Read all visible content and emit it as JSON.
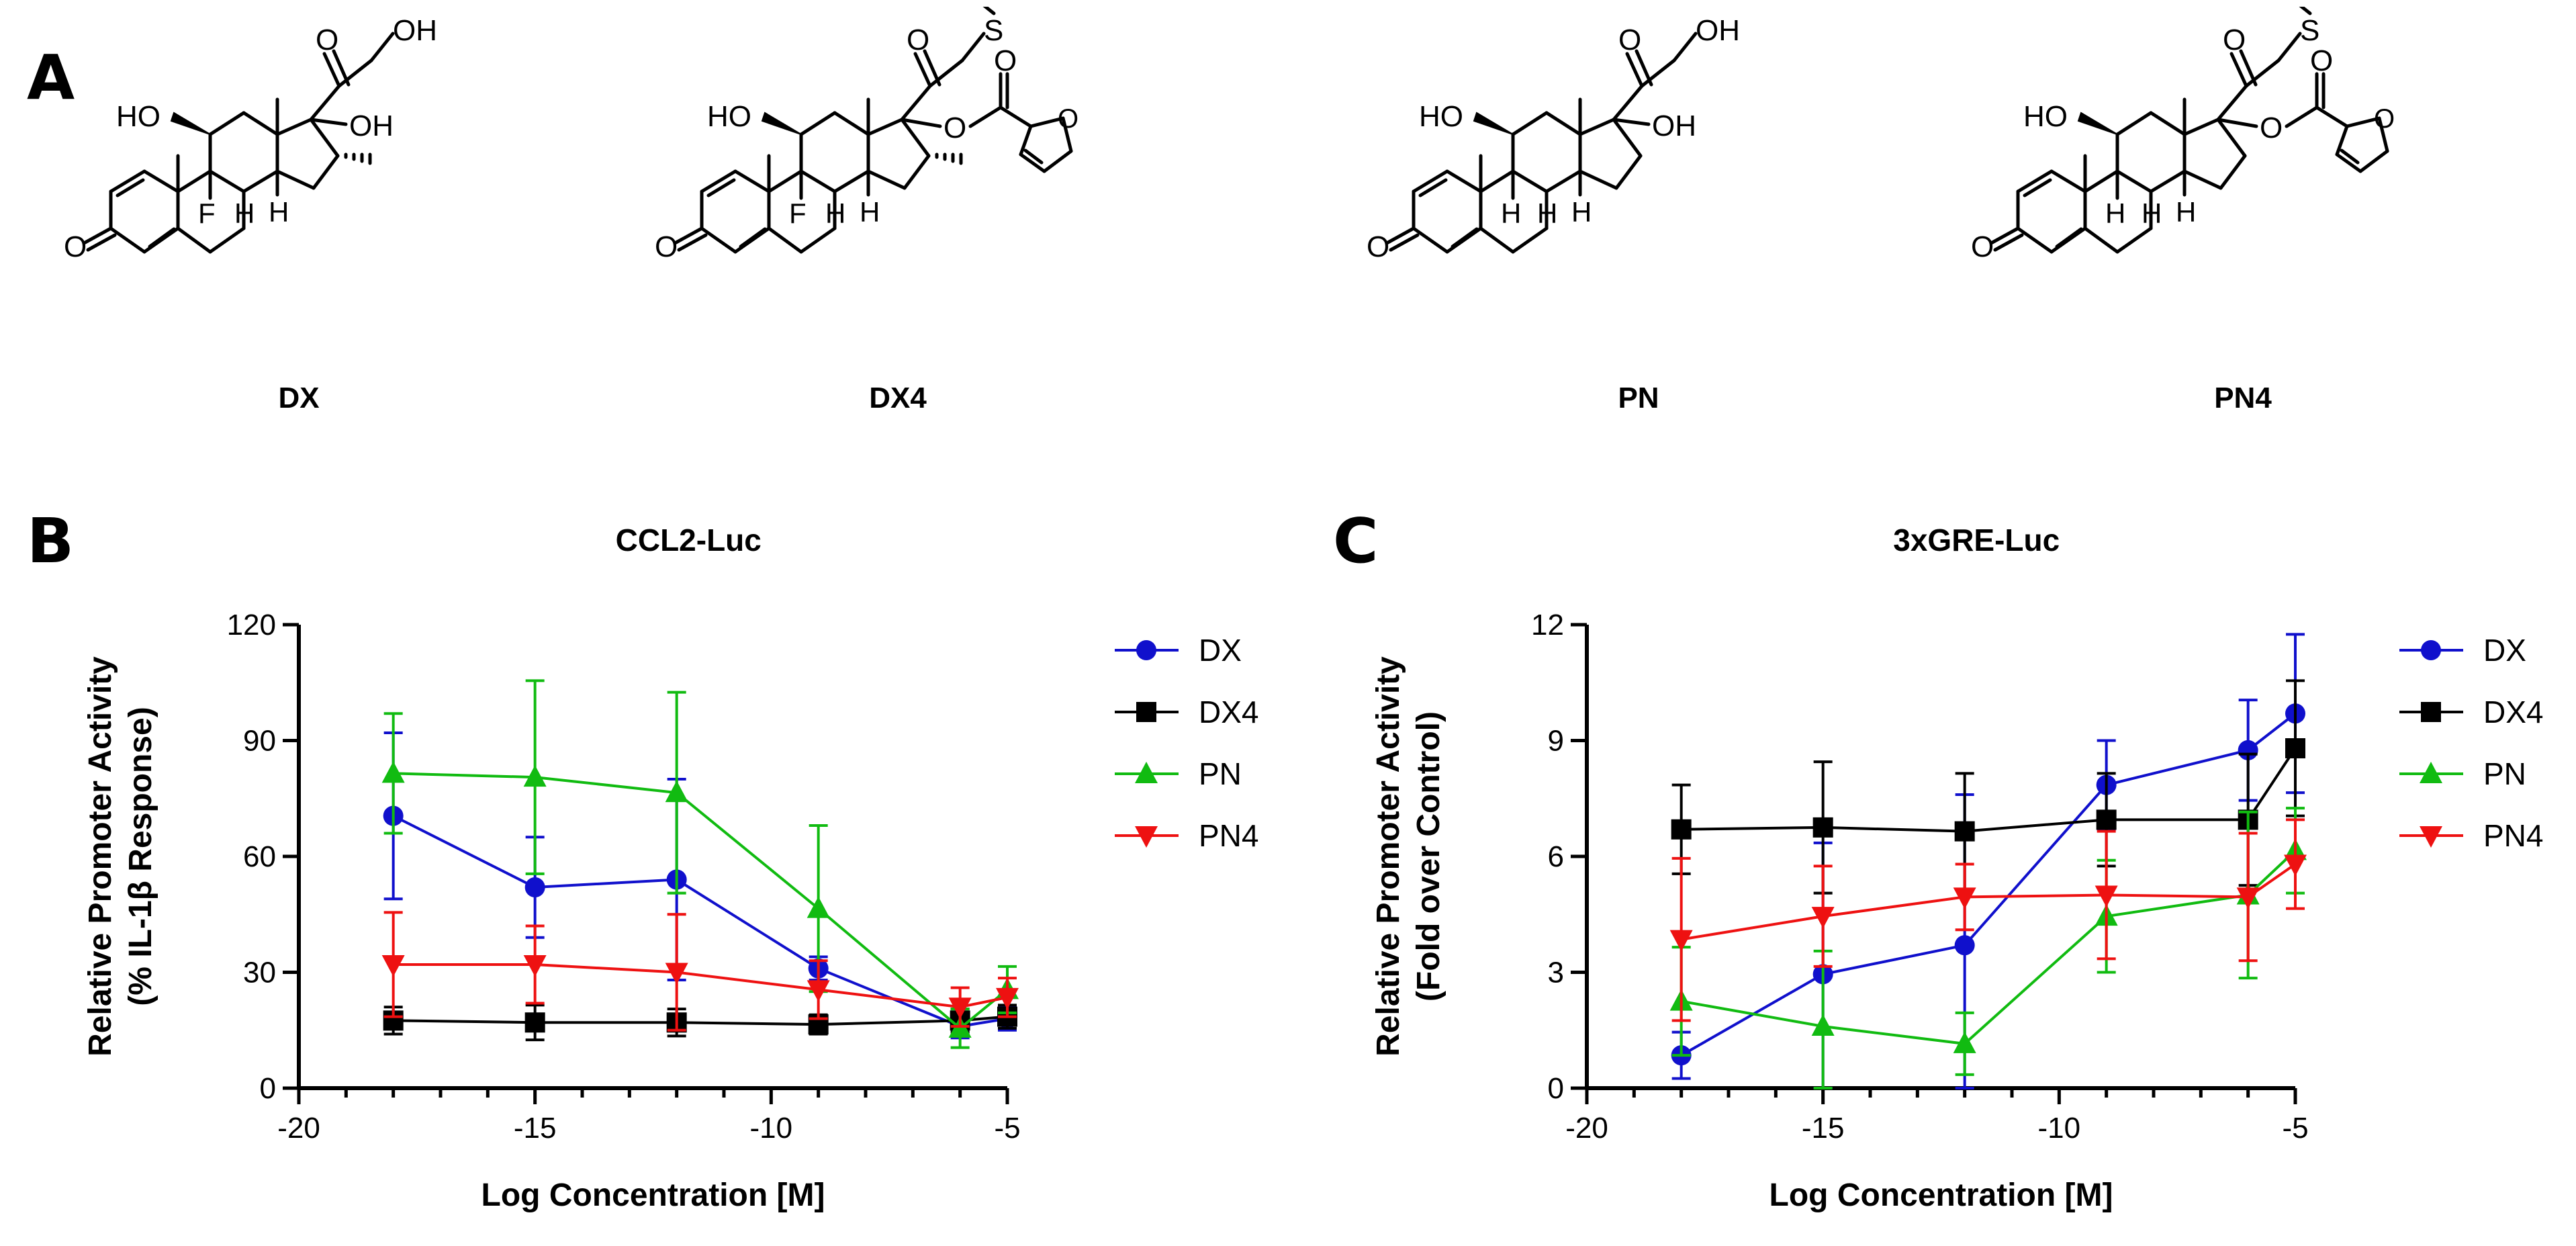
{
  "panels": {
    "a": "A",
    "b": "B",
    "c": "C"
  },
  "molecules": [
    {
      "name": "DX",
      "has_F": true,
      "has_methyl16": true,
      "c21": "OH",
      "c17": "OH"
    },
    {
      "name": "DX4",
      "has_F": true,
      "has_methyl16": true,
      "c21": "S",
      "c17": "ester"
    },
    {
      "name": "PN",
      "has_F": false,
      "has_methyl16": false,
      "c21": "OH",
      "c17": "OH"
    },
    {
      "name": "PN4",
      "has_F": false,
      "has_methyl16": false,
      "c21": "S",
      "c17": "ester"
    }
  ],
  "atom_labels": {
    "HO": "HO",
    "OH": "OH",
    "O": "O",
    "F": "F",
    "H": "H",
    "S": "S"
  },
  "colors": {
    "DX": "#1010cc",
    "DX4": "#000000",
    "PN": "#11bb11",
    "PN4": "#ee1111"
  },
  "chart_data": [
    {
      "type": "line",
      "title": "CCL2-Luc",
      "xlabel": "Log Concentration [M]",
      "ylabel_line1": "Relative Promoter Activity",
      "ylabel_line2": "(% IL-1β Response)",
      "xlim": [
        -20,
        -5
      ],
      "ylim": [
        0,
        120
      ],
      "xticks": [
        -20,
        -15,
        -10,
        -5
      ],
      "yticks": [
        0,
        30,
        60,
        90,
        120
      ],
      "legend_position": "right",
      "x": [
        -18,
        -15,
        -12,
        -9,
        -6,
        -5
      ],
      "series": [
        {
          "name": "DX",
          "marker": "circle",
          "values": [
            70.5,
            52,
            54,
            31,
            16,
            18
          ],
          "err": [
            21.5,
            13,
            26,
            3,
            3,
            3
          ]
        },
        {
          "name": "DX4",
          "marker": "square",
          "values": [
            17.5,
            17,
            17,
            16.5,
            17.5,
            18.5
          ],
          "err": [
            3.5,
            4.5,
            3.5,
            2.5,
            3,
            3
          ]
        },
        {
          "name": "PN",
          "marker": "triangle-up",
          "values": [
            81.5,
            80.5,
            76.5,
            46.5,
            15.5,
            25.5
          ],
          "err": [
            15.5,
            25,
            26,
            21.5,
            5,
            6
          ]
        },
        {
          "name": "PN4",
          "marker": "triangle-down",
          "values": [
            32,
            32,
            30,
            25.5,
            21,
            23.5
          ],
          "err": [
            13.5,
            10,
            15,
            7.5,
            5,
            5
          ]
        }
      ]
    },
    {
      "type": "line",
      "title": "3xGRE-Luc",
      "xlabel": "Log Concentration [M]",
      "ylabel_line1": "Relative Promoter Activity",
      "ylabel_line2": "(Fold over Control)",
      "xlim": [
        -20,
        -5
      ],
      "ylim": [
        0,
        12
      ],
      "xticks": [
        -20,
        -15,
        -10,
        -5
      ],
      "yticks": [
        0,
        3,
        6,
        9,
        12
      ],
      "legend_position": "right",
      "x": [
        -18,
        -15,
        -12,
        -9,
        -6,
        -5
      ],
      "series": [
        {
          "name": "DX",
          "marker": "circle",
          "values": [
            0.85,
            2.95,
            3.7,
            7.85,
            8.75,
            9.7
          ],
          "err": [
            0.6,
            3.4,
            3.9,
            1.15,
            1.3,
            2.05
          ]
        },
        {
          "name": "DX4",
          "marker": "square",
          "values": [
            6.7,
            6.75,
            6.65,
            6.95,
            6.95,
            8.8
          ],
          "err": [
            1.15,
            1.7,
            1.5,
            1.2,
            1.7,
            1.75
          ]
        },
        {
          "name": "PN",
          "marker": "triangle-up",
          "values": [
            2.25,
            1.6,
            1.15,
            4.45,
            5,
            6.15
          ],
          "err": [
            1.4,
            1.95,
            0.8,
            1.45,
            2.15,
            1.1
          ]
        },
        {
          "name": "PN4",
          "marker": "triangle-down",
          "values": [
            3.85,
            4.45,
            4.95,
            5,
            4.95,
            5.8
          ],
          "err": [
            2.1,
            1.3,
            0.85,
            1.65,
            1.65,
            1.15
          ]
        }
      ]
    }
  ]
}
